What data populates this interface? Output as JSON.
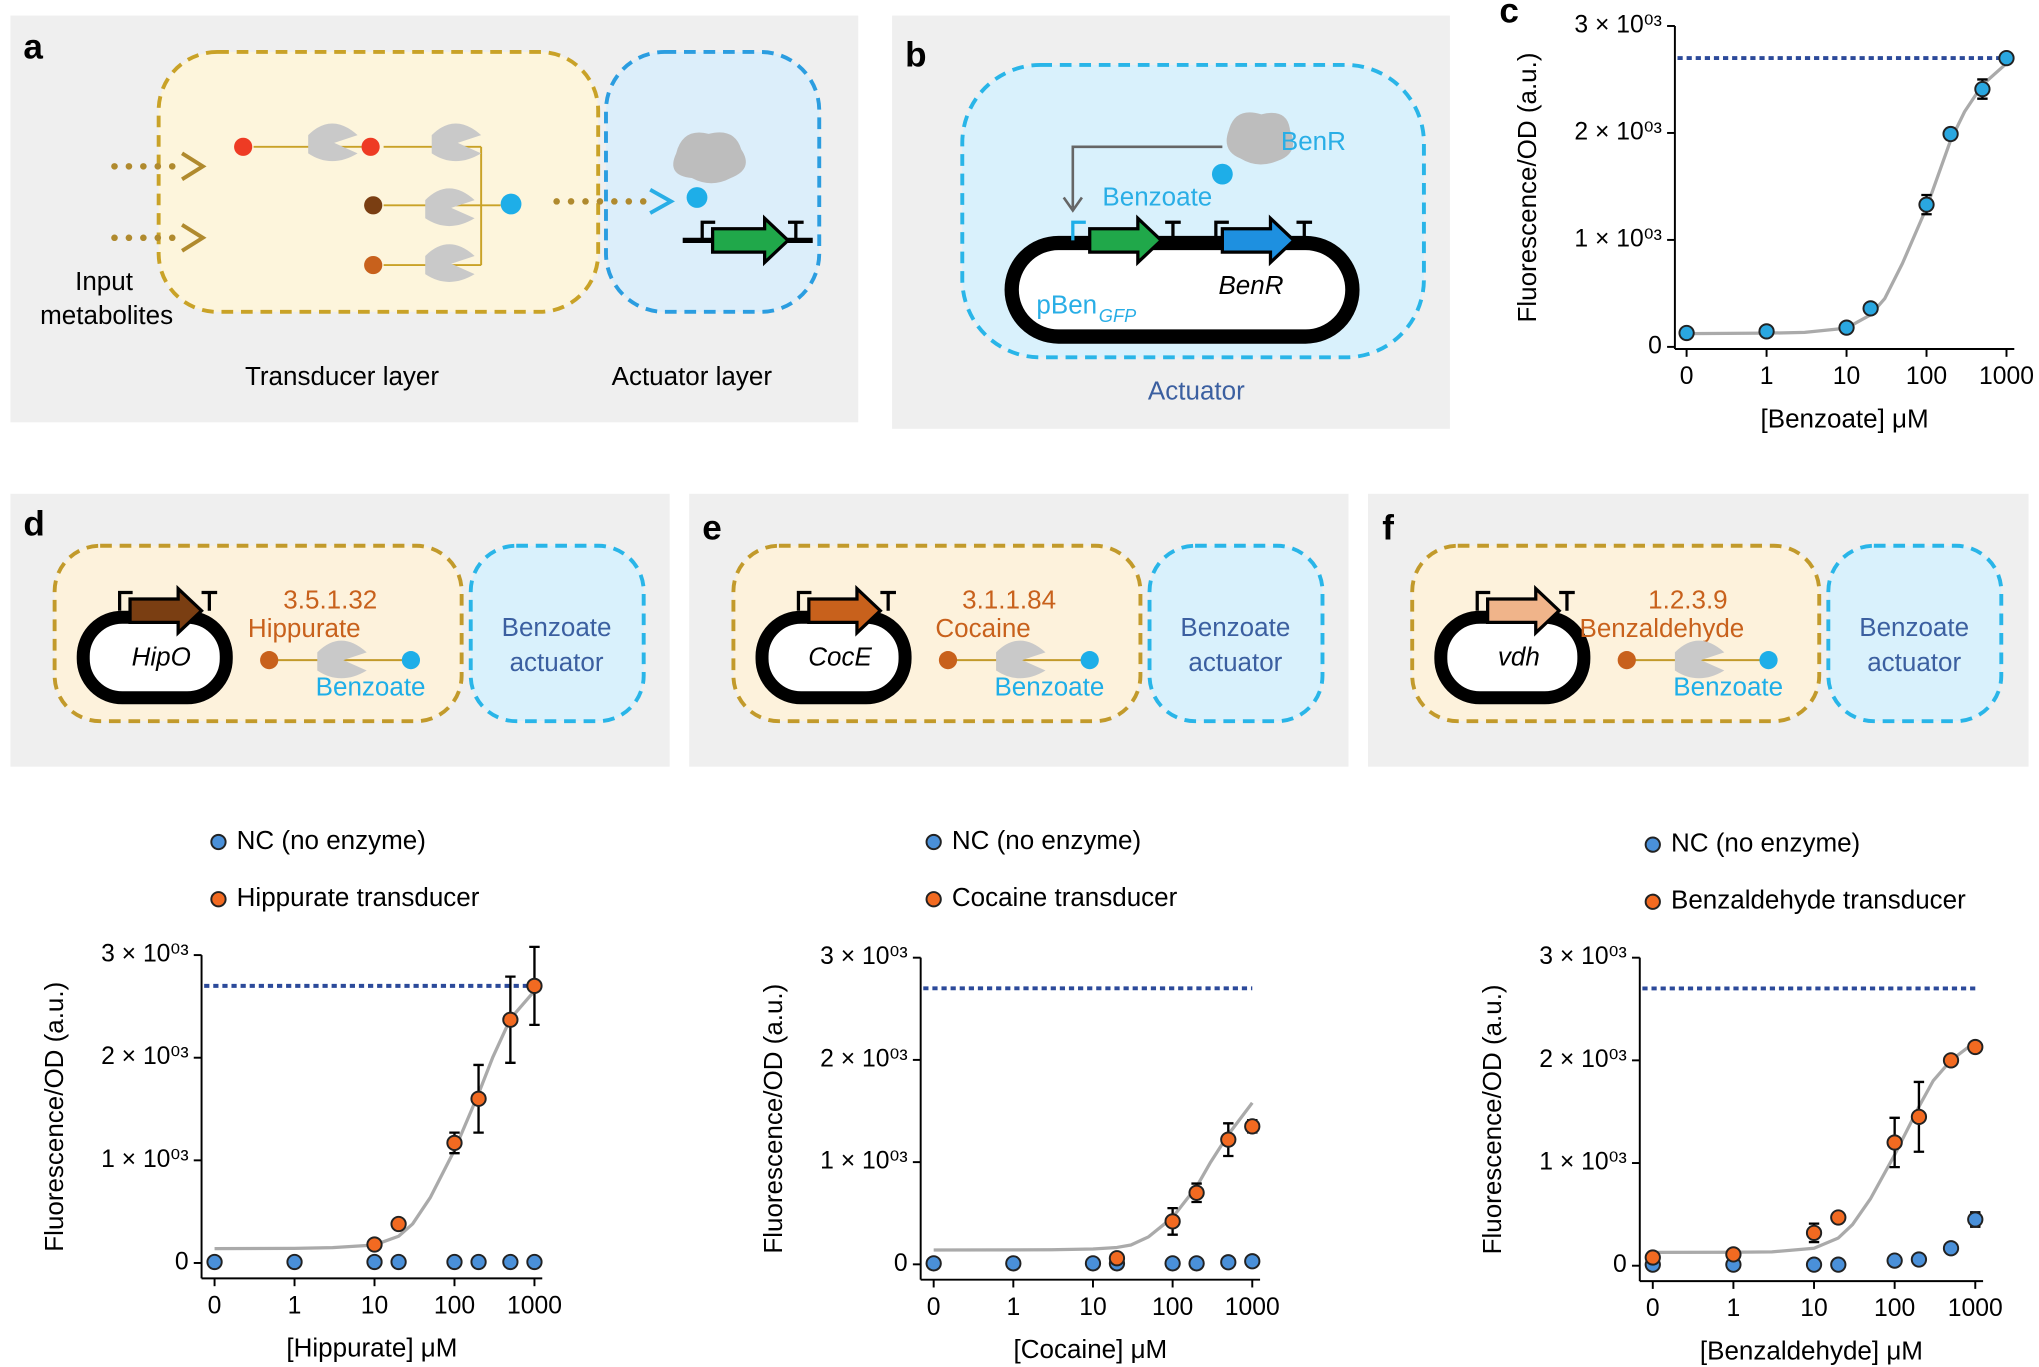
{
  "panel_labels": [
    "a",
    "b",
    "c",
    "d",
    "e",
    "f"
  ],
  "diagram_a": {
    "input_label": [
      "Input",
      "metabolites"
    ],
    "transducer_label": "Transducer layer",
    "actuator_label": "Actuator layer"
  },
  "diagram_b": {
    "regulator": "BenR",
    "ligand": "Benzoate",
    "promoter": "pBen",
    "promoter_subscript": "GFP",
    "gene": "BenR",
    "caption": "Actuator"
  },
  "transducers": [
    {
      "ec": "3.5.1.32",
      "substrate": "Hippurate",
      "product": "Benzoate",
      "gene": "HipO",
      "gene_color": "#7a3e12",
      "actuator": [
        "Benzoate",
        "actuator"
      ]
    },
    {
      "ec": "3.1.1.84",
      "substrate": "Cocaine",
      "product": "Benzoate",
      "gene": "CocE",
      "gene_color": "#c8611c",
      "actuator": [
        "Benzoate",
        "actuator"
      ]
    },
    {
      "ec": "1.2.3.9",
      "substrate": "Benzaldehyde",
      "product": "Benzoate",
      "gene": "vdh",
      "gene_color": "#f0b48a",
      "actuator": [
        "Benzoate",
        "actuator"
      ]
    }
  ],
  "chart_data": [
    {
      "type": "scatter",
      "xlabel": "[Benzoate] μM",
      "ylabel": "Fluorescence/OD (a.u.)",
      "xscale": "symlog",
      "xlim": [
        0,
        1000
      ],
      "xticks": [
        0,
        1,
        10,
        100,
        1000
      ],
      "ylim": [
        -20,
        3000
      ],
      "yticks": [
        0,
        {
          "value": 1000,
          "label": "1 × 10⁰³"
        },
        {
          "value": 2000,
          "label": "2 × 10⁰³"
        },
        {
          "value": 3000,
          "label": "3 × 10⁰³"
        }
      ],
      "reference_line": 2700,
      "reference_color": "#2c4a9a",
      "series": [
        {
          "color": "#2aa7e0",
          "x": [
            0,
            1,
            10,
            20,
            100,
            200,
            500,
            1000
          ],
          "values": [
            130,
            145,
            180,
            360,
            1330,
            1990,
            2410,
            2700
          ],
          "errors": [
            30,
            20,
            20,
            30,
            90,
            50,
            90,
            20
          ]
        }
      ],
      "fit": {
        "color": "#aaaaaa",
        "x": [
          0,
          1,
          3,
          10,
          20,
          30,
          50,
          100,
          200,
          300,
          500,
          1000
        ],
        "values": [
          125,
          128,
          135,
          175,
          300,
          450,
          780,
          1300,
          1930,
          2200,
          2450,
          2650
        ]
      }
    },
    {
      "type": "scatter",
      "xlabel": "[Hippurate] μM",
      "ylabel": "Fluorescence/OD (a.u.)",
      "xscale": "symlog",
      "xlim": [
        0,
        1000
      ],
      "xticks": [
        0,
        1,
        10,
        100,
        1000
      ],
      "ylim": [
        -150,
        3000
      ],
      "yticks": [
        0,
        {
          "value": 1000,
          "label": "1 × 10⁰³"
        },
        {
          "value": 2000,
          "label": "2 × 10⁰³"
        },
        {
          "value": 3000,
          "label": "3 × 10⁰³"
        }
      ],
      "reference_line": 2700,
      "reference_color": "#2c4a9a",
      "series": [
        {
          "name": "NC (no enzyme)",
          "color": "#4a90d9",
          "x": [
            0,
            1,
            10,
            20,
            100,
            200,
            500,
            1000
          ],
          "values": [
            10,
            10,
            10,
            10,
            10,
            10,
            10,
            10
          ],
          "errors": [
            40,
            30,
            0,
            0,
            0,
            0,
            0,
            0
          ]
        },
        {
          "name": "Hippurate transducer",
          "color": "#f26a21",
          "x": [
            10,
            20,
            100,
            200,
            500,
            1000
          ],
          "values": [
            180,
            380,
            1170,
            1600,
            2370,
            2700
          ],
          "errors": [
            20,
            30,
            100,
            330,
            420,
            380
          ]
        }
      ],
      "fit": {
        "color": "#aaaaaa",
        "x": [
          0,
          1,
          3,
          10,
          20,
          30,
          50,
          100,
          200,
          300,
          500,
          1000
        ],
        "values": [
          140,
          142,
          150,
          175,
          260,
          380,
          640,
          1100,
          1650,
          2000,
          2380,
          2650
        ]
      }
    },
    {
      "type": "scatter",
      "xlabel": "[Cocaine] μM",
      "ylabel": "Fluorescence/OD (a.u.)",
      "xscale": "symlog",
      "xlim": [
        0,
        1000
      ],
      "xticks": [
        0,
        1,
        10,
        100,
        1000
      ],
      "ylim": [
        -150,
        3000
      ],
      "yticks": [
        0,
        {
          "value": 1000,
          "label": "1 × 10⁰³"
        },
        {
          "value": 2000,
          "label": "2 × 10⁰³"
        },
        {
          "value": 3000,
          "label": "3 × 10⁰³"
        }
      ],
      "reference_line": 2700,
      "reference_color": "#2c4a9a",
      "series": [
        {
          "name": "NC (no enzyme)",
          "color": "#4a90d9",
          "x": [
            0,
            1,
            10,
            20,
            100,
            200,
            500,
            1000
          ],
          "values": [
            10,
            10,
            10,
            10,
            10,
            10,
            20,
            30
          ],
          "errors": [
            0,
            0,
            0,
            0,
            0,
            0,
            0,
            0
          ]
        },
        {
          "name": "Cocaine transducer",
          "color": "#f26a21",
          "x": [
            20,
            100,
            200,
            500,
            1000
          ],
          "values": [
            60,
            420,
            700,
            1220,
            1350
          ],
          "errors": [
            40,
            130,
            90,
            160,
            60
          ]
        }
      ],
      "fit": {
        "color": "#aaaaaa",
        "x": [
          0,
          1,
          3,
          10,
          20,
          30,
          50,
          100,
          200,
          300,
          500,
          1000
        ],
        "values": [
          140,
          141,
          143,
          150,
          165,
          190,
          270,
          460,
          760,
          1000,
          1270,
          1580
        ]
      }
    },
    {
      "type": "scatter",
      "xlabel": "[Benzaldehyde] μM",
      "ylabel": "Fluorescence/OD (a.u.)",
      "xscale": "symlog",
      "xlim": [
        0,
        1000
      ],
      "xticks": [
        0,
        1,
        10,
        100,
        1000
      ],
      "ylim": [
        -150,
        3000
      ],
      "yticks": [
        0,
        {
          "value": 1000,
          "label": "1 × 10⁰³"
        },
        {
          "value": 2000,
          "label": "2 × 10⁰³"
        },
        {
          "value": 3000,
          "label": "3 × 10⁰³"
        }
      ],
      "reference_line": 2700,
      "reference_color": "#2c4a9a",
      "series": [
        {
          "name": "NC (no enzyme)",
          "color": "#4a90d9",
          "x": [
            0,
            1,
            10,
            20,
            100,
            200,
            500,
            1000
          ],
          "values": [
            10,
            10,
            10,
            10,
            50,
            60,
            170,
            450
          ],
          "errors": [
            0,
            0,
            0,
            0,
            0,
            0,
            0,
            70
          ]
        },
        {
          "name": "Benzaldehyde transducer",
          "color": "#f26a21",
          "x": [
            0,
            1,
            10,
            20,
            100,
            200,
            500,
            1000
          ],
          "values": [
            80,
            110,
            320,
            470,
            1200,
            1450,
            2000,
            2130
          ],
          "errors": [
            30,
            20,
            90,
            20,
            240,
            340,
            40,
            40
          ]
        }
      ],
      "fit": {
        "color": "#aaaaaa",
        "x": [
          0,
          1,
          3,
          10,
          20,
          30,
          50,
          100,
          200,
          300,
          500,
          1000
        ],
        "values": [
          130,
          131,
          135,
          170,
          270,
          400,
          650,
          1080,
          1550,
          1800,
          2000,
          2180
        ]
      }
    }
  ]
}
